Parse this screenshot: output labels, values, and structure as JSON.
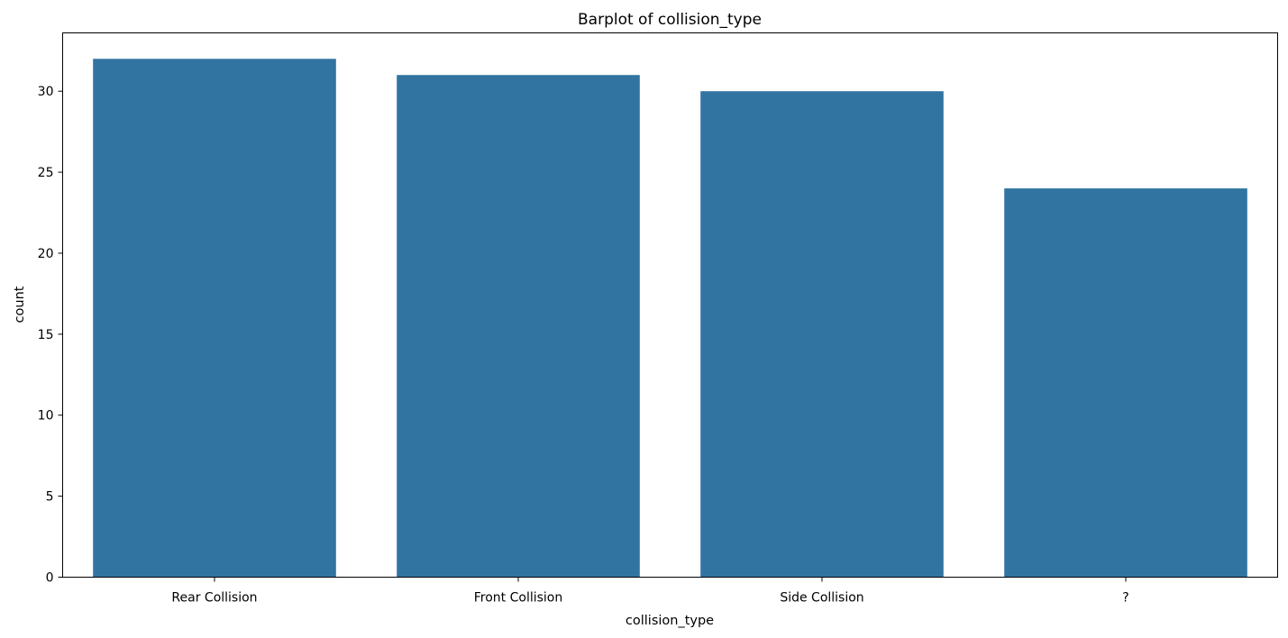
{
  "chart_data": {
    "type": "bar",
    "title": "Barplot of collision_type",
    "xlabel": "collision_type",
    "ylabel": "count",
    "categories": [
      "Rear Collision",
      "Front Collision",
      "Side Collision",
      "?"
    ],
    "values": [
      32,
      31,
      30,
      24
    ],
    "ylim": [
      0,
      33.6
    ],
    "yticks": [
      0,
      5,
      10,
      15,
      20,
      25,
      30
    ],
    "grid": false,
    "legend": "none",
    "bar_color": "#3274a1"
  }
}
